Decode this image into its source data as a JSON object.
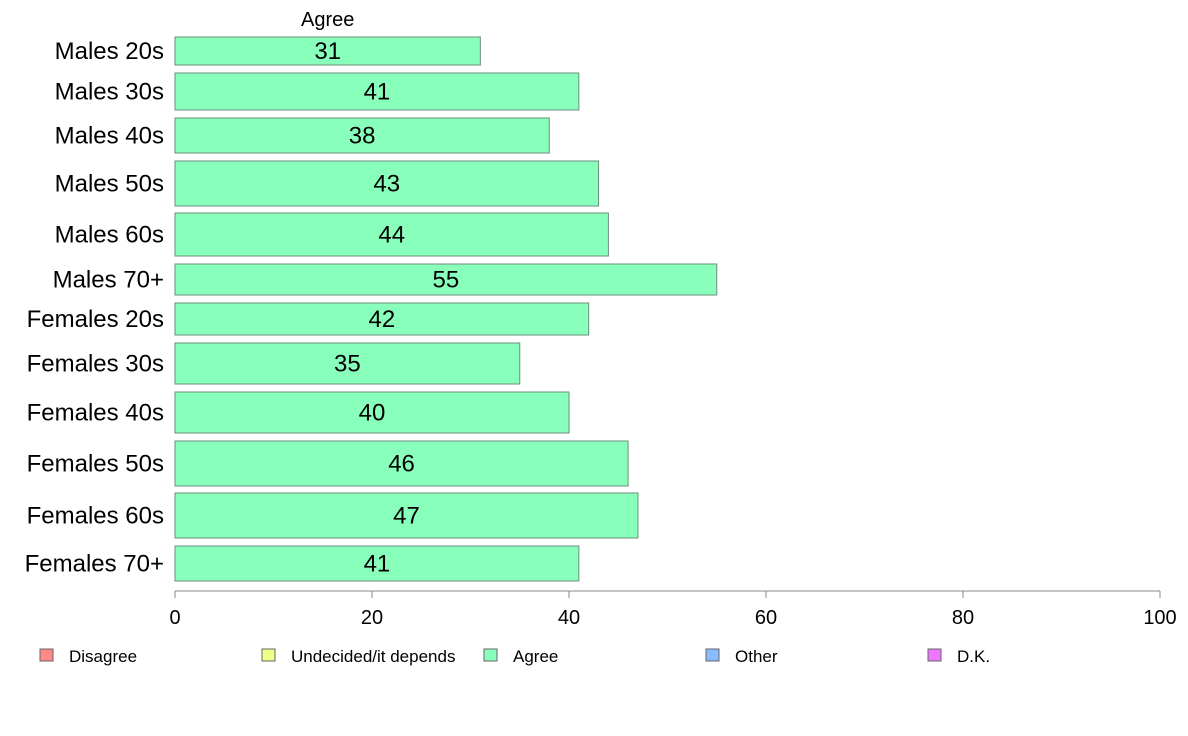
{
  "chart_data": {
    "type": "bar",
    "orientation": "horizontal",
    "series_label": "Agree",
    "categories": [
      "Males 20s",
      "Males 30s",
      "Males 40s",
      "Males 50s",
      "Males 60s",
      "Males 70+",
      "Females 20s",
      "Females 30s",
      "Females 40s",
      "Females 50s",
      "Females 60s",
      "Females 70+"
    ],
    "series": [
      {
        "name": "Agree",
        "color": "#88ffbb",
        "values": [
          31,
          41,
          38,
          43,
          44,
          55,
          42,
          35,
          40,
          46,
          47,
          41
        ]
      }
    ],
    "xlim": [
      0,
      100
    ],
    "xticks": [
      0,
      20,
      40,
      60,
      80,
      100
    ],
    "grid": false,
    "legend": {
      "placement": "bottom",
      "items": [
        {
          "label": "Disagree",
          "color": "#ff8888"
        },
        {
          "label": "Undecided/it depends",
          "color": "#eeff88"
        },
        {
          "label": "Agree",
          "color": "#88ffbb"
        },
        {
          "label": "Other",
          "color": "#88bbff"
        },
        {
          "label": "D.K.",
          "color": "#ee77ff"
        }
      ]
    }
  }
}
